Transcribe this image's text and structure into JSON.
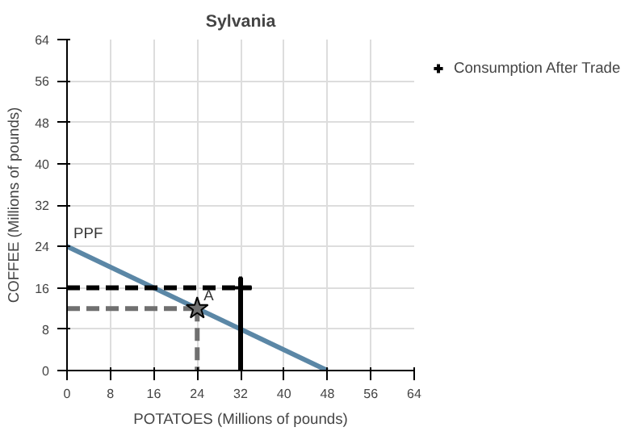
{
  "chart_data": {
    "type": "line",
    "title": "Sylvania",
    "xlabel": "POTATOES (Millions of pounds)",
    "ylabel": "COFFEE (Millions of pounds)",
    "xlim": [
      0,
      64
    ],
    "ylim": [
      0,
      64
    ],
    "xticks": [
      0,
      8,
      16,
      24,
      32,
      40,
      48,
      56,
      64
    ],
    "yticks": [
      0,
      8,
      16,
      24,
      32,
      40,
      48,
      56,
      64
    ],
    "grid": true,
    "legend": "top right",
    "series": [
      {
        "type": "line",
        "color": "#5b87a6",
        "x": [
          0,
          48
        ],
        "values": [
          24,
          0
        ],
        "line_style": "solid"
      },
      {
        "color": "#707070",
        "x": [
          0,
          24
        ],
        "values": [
          12,
          12
        ],
        "line_style": "dashed"
      },
      {
        "type": "line",
        "color": "#707070",
        "x": [
          24,
          24
        ],
        "values": [
          12,
          0
        ],
        "line_style": "dashed"
      },
      {
        "type": "line",
        "color": "#000000",
        "x": [
          0,
          34
        ],
        "values": [
          16,
          16
        ],
        "line_style": "dashed"
      },
      {
        "type": "line",
        "color": "#000000",
        "x": [
          32,
          32
        ],
        "values": [
          0,
          18
        ],
        "line_style": "solid"
      },
      {
        "type": "scatter",
        "color": "#707070",
        "x": [
          24
        ],
        "values": [
          12
        ],
        "marker": "star"
      },
      {
        "type": "scatter",
        "name": "Consumption After Trade",
        "color": "#000000",
        "x": [
          32
        ],
        "values": [
          16
        ],
        "marker": "cross"
      }
    ],
    "annotations": [
      {
        "text": "PPF",
        "x": 0,
        "y": 24
      },
      {
        "text": "A",
        "x": 24,
        "y": 12
      }
    ]
  }
}
